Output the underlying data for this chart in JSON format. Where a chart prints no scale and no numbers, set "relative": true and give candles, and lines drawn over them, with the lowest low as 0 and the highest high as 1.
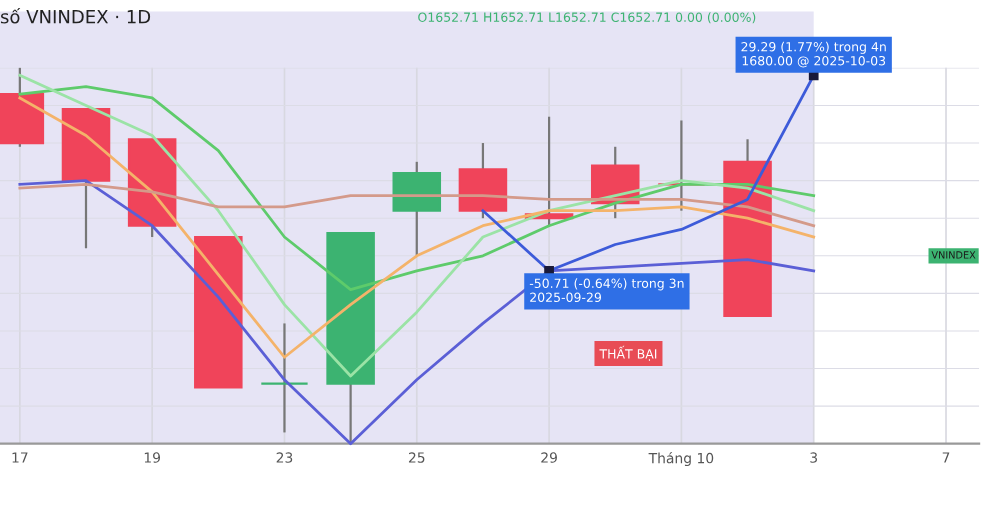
{
  "chart_data": {
    "type": "candlestick",
    "title": "số VNINDEX · 1D",
    "subtitle": "O1652.71 H1652.71 L1652.71 C1652.71 0.00 (0.00%)",
    "relative": true,
    "grid": true,
    "legend": false,
    "categories": [
      "17",
      null,
      "19",
      null,
      "23",
      null,
      "25",
      null,
      "29",
      null,
      "Tháng 10",
      null,
      "3",
      null,
      "7"
    ],
    "ohlc": [
      [
        0.93,
        1.0,
        0.79,
        0.8
      ],
      [
        0.89,
        0.89,
        0.52,
        0.7
      ],
      [
        0.81,
        0.81,
        0.55,
        0.58
      ],
      [
        0.55,
        0.55,
        0.15,
        0.15
      ],
      [
        0.16,
        0.32,
        0.03,
        0.16
      ],
      [
        0.16,
        0.56,
        0.0,
        0.56
      ],
      [
        0.62,
        0.75,
        0.5,
        0.72
      ],
      [
        0.73,
        0.8,
        0.6,
        0.62
      ],
      [
        0.61,
        0.87,
        0.58,
        0.6
      ],
      [
        0.74,
        0.79,
        0.6,
        0.64
      ],
      [
        0.69,
        0.86,
        0.62,
        0.69
      ],
      [
        0.75,
        0.81,
        0.34,
        0.34
      ],
      null,
      null,
      null
    ],
    "colors": [
      "#f0445a",
      "#f0445a",
      "#f0445a",
      "#f0445a",
      "#3cb371",
      "#3cb371",
      "#3cb371",
      "#f0445a",
      "#f0445a",
      "#f0445a",
      "#f0445a",
      "#f0445a",
      null,
      null,
      null
    ],
    "series": [
      {
        "type": "line",
        "color": "#5b5fd6",
        "values": [
          0.69,
          0.7,
          0.58,
          0.39,
          0.17,
          0.0,
          0.17,
          0.32,
          0.46,
          0.47,
          0.48,
          0.49,
          0.46,
          null,
          null
        ]
      },
      {
        "type": "line",
        "color": "#5ecb6b",
        "values": [
          0.93,
          0.95,
          0.92,
          0.78,
          0.55,
          0.41,
          0.46,
          0.5,
          0.58,
          0.64,
          0.69,
          0.69,
          0.66,
          null,
          null
        ]
      },
      {
        "type": "line",
        "color": "#9be3a6",
        "values": [
          0.98,
          0.9,
          0.82,
          0.62,
          0.37,
          0.18,
          0.35,
          0.55,
          0.62,
          0.66,
          0.7,
          0.68,
          0.62,
          null,
          null
        ]
      },
      {
        "type": "line",
        "color": "#f4b36a",
        "values": [
          0.92,
          0.82,
          0.67,
          0.45,
          0.23,
          0.37,
          0.5,
          0.58,
          0.62,
          0.62,
          0.63,
          0.6,
          0.55,
          null,
          null
        ]
      },
      {
        "type": "line",
        "color": "#d49a8a",
        "values": [
          0.68,
          0.69,
          0.67,
          0.63,
          0.63,
          0.66,
          0.66,
          0.66,
          0.65,
          0.65,
          0.65,
          0.63,
          0.58,
          null,
          null
        ]
      },
      {
        "type": "line",
        "color": "#3d5bd9",
        "values": [
          null,
          null,
          null,
          null,
          null,
          null,
          null,
          0.62,
          0.46,
          0.53,
          0.57,
          0.65,
          0.98,
          null,
          null
        ]
      }
    ],
    "bands": [
      {
        "axis": "x",
        "from": "17",
        "to": "3",
        "color": "#e6e4f5"
      }
    ],
    "annotations": [
      {
        "text": "29.29 (1.77%) trong 4n\n1680.00 @ 2025-10-03",
        "x": "3",
        "y": 0.98
      },
      {
        "text": "-50.71 (-0.64%) trong 3n\n2025-09-29",
        "x": "29",
        "y": 0.46
      },
      "THẤT BẠI",
      "VNINDEX"
    ]
  }
}
